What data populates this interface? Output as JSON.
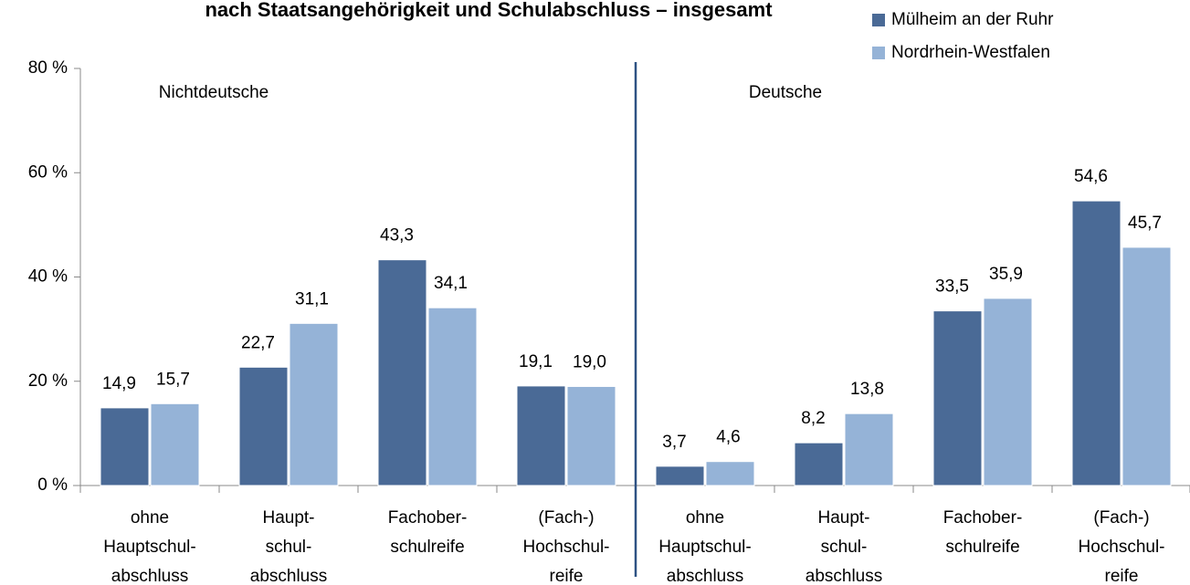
{
  "chart_data": {
    "type": "bar",
    "title": "nach Staatsangehörigkeit und Schulabschluss – insgesamt",
    "categories": [
      [
        "ohne",
        "Hauptschul-",
        "abschluss"
      ],
      [
        "Haupt-",
        "schul-",
        "abschluss"
      ],
      [
        "Fachober-",
        "schulreife"
      ],
      [
        "(Fach-)",
        "Hochschul-",
        "reife"
      ],
      [
        "ohne",
        "Hauptschul-",
        "abschluss"
      ],
      [
        "Haupt-",
        "schul-",
        "abschluss"
      ],
      [
        "Fachober-",
        "schulreife"
      ],
      [
        "(Fach-)",
        "Hochschul-",
        "reife"
      ]
    ],
    "annotations": [
      "Nichtdeutsche",
      "Deutsche"
    ],
    "series": [
      {
        "name": "Mülheim an der Ruhr",
        "color": "#4a6a96",
        "values": [
          14.9,
          22.7,
          43.3,
          19.1,
          3.7,
          8.2,
          33.5,
          54.6
        ],
        "value_labels": [
          "14,9",
          "22,7",
          "43,3",
          "19,1",
          "3,7",
          "8,2",
          "33,5",
          "54,6"
        ]
      },
      {
        "name": "Nordrhein-Westfalen",
        "color": "#95b3d7",
        "values": [
          15.7,
          31.1,
          34.1,
          19.0,
          4.6,
          13.8,
          35.9,
          45.7
        ],
        "value_labels": [
          "15,7",
          "31,1",
          "34,1",
          "19,0",
          "4,6",
          "13,8",
          "35,9",
          "45,7"
        ]
      }
    ],
    "ylim": [
      0,
      80
    ],
    "yticks": [
      {
        "value": 0,
        "label": "0 %"
      },
      {
        "value": 20,
        "label": "20 %"
      },
      {
        "value": 40,
        "label": "40 %"
      },
      {
        "value": 60,
        "label": "60 %"
      },
      {
        "value": 80,
        "label": "80 %"
      }
    ],
    "legend": "top-right"
  }
}
